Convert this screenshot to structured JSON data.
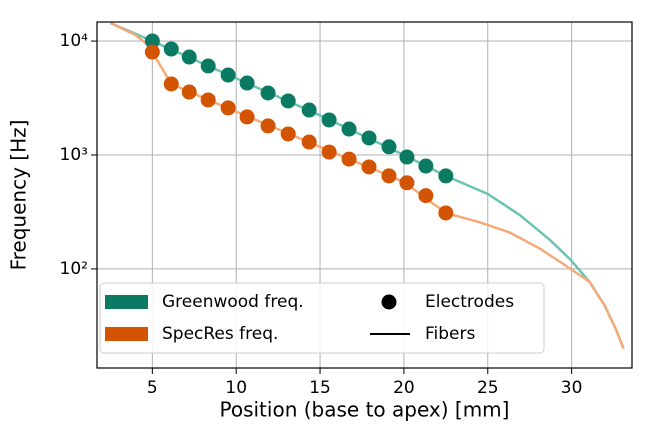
{
  "chart_data": {
    "type": "line",
    "xlabel": "Position (base to apex) [mm]",
    "ylabel": "Frequency [Hz]",
    "xlim": [
      1.7,
      33.6
    ],
    "ylim": [
      13.5,
      14700
    ],
    "yscale": "log",
    "grid": true,
    "xticks": [
      5,
      10,
      15,
      20,
      25,
      30
    ],
    "yticks": [
      {
        "value": 100,
        "label": "10²"
      },
      {
        "value": 1000,
        "label": "10³"
      },
      {
        "value": 10000,
        "label": "10⁴"
      }
    ],
    "legend": {
      "loc": "lower left",
      "marker_entries": [
        "Electrodes",
        "Fibers"
      ],
      "marker_color": "#000000"
    },
    "series": [
      {
        "name": "Greenwood freq.",
        "color": "#0b7a62",
        "line_color": "#6cc4b2",
        "electrode_x": [
          5.0,
          6.13,
          7.2,
          8.33,
          9.52,
          10.65,
          11.9,
          13.1,
          14.35,
          15.54,
          16.73,
          17.92,
          19.11,
          20.18,
          21.31,
          22.5
        ],
        "electrode_values": [
          10000,
          8510,
          7240,
          6040,
          5030,
          4280,
          3500,
          2980,
          2480,
          2030,
          1690,
          1410,
          1180,
          960,
          800,
          655
        ],
        "fiber_x": [
          2.5,
          5,
          10,
          15,
          20,
          22.5,
          25,
          26.9,
          28.7,
          29.94,
          31.07,
          31.96,
          32.62,
          33.1
        ],
        "fiber_values": [
          14400,
          10000,
          4700,
          2230,
          1000,
          655,
          455,
          298,
          180,
          120,
          77,
          48,
          30,
          20
        ]
      },
      {
        "name": "SpecRes freq.",
        "color": "#d35400",
        "line_color": "#f5aa78",
        "electrode_x": [
          5.0,
          6.13,
          7.2,
          8.33,
          9.52,
          10.65,
          11.9,
          13.1,
          14.35,
          15.54,
          16.73,
          17.92,
          19.11,
          20.18,
          21.31,
          22.5
        ],
        "electrode_values": [
          8010,
          4200,
          3570,
          3040,
          2590,
          2160,
          1800,
          1530,
          1300,
          1060,
          920,
          785,
          655,
          570,
          440,
          310
        ],
        "fiber_x": [
          2.5,
          3.99,
          4.76,
          5.0,
          6.13,
          10,
          15,
          20,
          22.5,
          24.5,
          26.3,
          28.1,
          29.6,
          31.07,
          31.96,
          32.62,
          33.1
        ],
        "fiber_values": [
          14400,
          11300,
          9220,
          8010,
          4200,
          2400,
          1180,
          580,
          310,
          257,
          209,
          151,
          108,
          77,
          48,
          30,
          20
        ]
      }
    ]
  }
}
